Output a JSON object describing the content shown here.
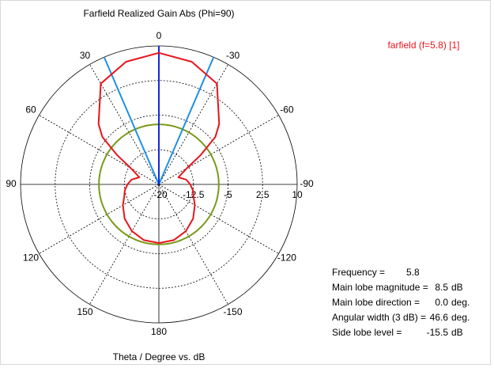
{
  "chart_data": {
    "type": "polar",
    "title": "Farfield Realized Gain Abs (Phi=90)",
    "axis_label": "Theta / Degree vs. dB",
    "rlim": [
      -20,
      10
    ],
    "rticks": [
      -20,
      -12.5,
      -5,
      2.5,
      10
    ],
    "thetaticks": [
      0,
      30,
      60,
      90,
      120,
      150,
      180,
      -150,
      -120,
      -90,
      -60,
      -30
    ],
    "series": [
      {
        "name": "farfield (f=5.8) [1]",
        "color": "#e8141c",
        "x": [
          -180,
          -165,
          -150,
          -135,
          -120,
          -110,
          -100,
          -90,
          -80,
          -70,
          -60,
          -55,
          -50,
          -45,
          -30,
          -15,
          0,
          15,
          30,
          45,
          50,
          55,
          60,
          70,
          80,
          90,
          100,
          110,
          120,
          135,
          150,
          165,
          180
        ],
        "values": [
          -7.3,
          -7.5,
          -8.3,
          -9.5,
          -11,
          -12,
          -12.5,
          -13.2,
          -14,
          -15.5,
          -13,
          -9,
          -4,
          -1.5,
          5.2,
          7.5,
          8.5,
          7.5,
          5.2,
          -1.5,
          -4,
          -9,
          -13,
          -15.5,
          -14,
          -13.2,
          -12.5,
          -12,
          -11,
          -9.5,
          -8.3,
          -7.5,
          -7.3
        ]
      }
    ],
    "beam_color": "#1f8fe8",
    "main_axis_color": "#1428d8",
    "sidelobe_color": "#7a9a1a",
    "info": [
      {
        "text": "Frequency =",
        "value": 5.8
      },
      {
        "text": "Main lobe magnitude =",
        "value": 8.5,
        "unit": "dB"
      },
      {
        "text": "Main lobe direction =",
        "value": 0,
        "value_label": "0.0",
        "unit": "deg."
      },
      {
        "text": "Angular width (3 dB) =",
        "value": 46.6,
        "unit": "deg."
      },
      {
        "text": "Side lobe level =",
        "value": -15.5,
        "unit": "dB"
      }
    ]
  }
}
